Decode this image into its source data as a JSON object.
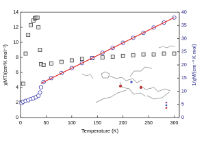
{
  "chart_data": {
    "type": "scatter",
    "xlabel": "Temperature (K)",
    "ylabel": "χMT/(cm³K mol⁻¹)",
    "y2label": "1/χM/(cm⁻³ K mol)",
    "xlim": [
      0,
      310
    ],
    "xticks": [
      0,
      50,
      100,
      150,
      200,
      250,
      300
    ],
    "ylim": [
      0,
      14
    ],
    "yticks": [
      0,
      2,
      4,
      6,
      8,
      10,
      12,
      14
    ],
    "y2lim": [
      0,
      40
    ],
    "y2ticks": [
      0,
      5,
      10,
      15,
      20,
      25,
      30,
      35,
      40
    ],
    "series": [
      {
        "color": "#222222",
        "marker": "square",
        "x": [
          2,
          5,
          10,
          15,
          20,
          25,
          28,
          30,
          33,
          35,
          38,
          40,
          45,
          60,
          80,
          100,
          120,
          140,
          160,
          180,
          200,
          220,
          240,
          260,
          280,
          300
        ],
        "values": [
          2.0,
          4.5,
          8.5,
          11.0,
          12.3,
          12.9,
          13.2,
          13.3,
          13.3,
          12.0,
          9.0,
          7.1,
          7.0,
          7.2,
          7.4,
          7.6,
          7.8,
          7.9,
          8.0,
          8.1,
          8.2,
          8.3,
          8.4,
          8.4,
          8.5,
          8.5
        ]
      },
      {
        "color": "#3a3ab0",
        "marker": "circle",
        "axis": "y2",
        "x": [
          2,
          5,
          10,
          15,
          20,
          25,
          30,
          35,
          38,
          40,
          45,
          60,
          80,
          100,
          120,
          140,
          160,
          180,
          200,
          220,
          240,
          260,
          280,
          300
        ],
        "values": [
          5.5,
          6.0,
          6.3,
          6.6,
          7.0,
          7.3,
          7.7,
          8.3,
          9.5,
          11.5,
          13.5,
          15.0,
          16.9,
          18.8,
          20.7,
          22.6,
          24.6,
          26.5,
          28.4,
          30.3,
          32.2,
          34.2,
          36.1,
          38.0
        ]
      }
    ],
    "fit_line": {
      "color": "#e03030",
      "axis": "y2",
      "x": [
        40,
        300
      ],
      "values": [
        13.0,
        38.0
      ]
    }
  }
}
